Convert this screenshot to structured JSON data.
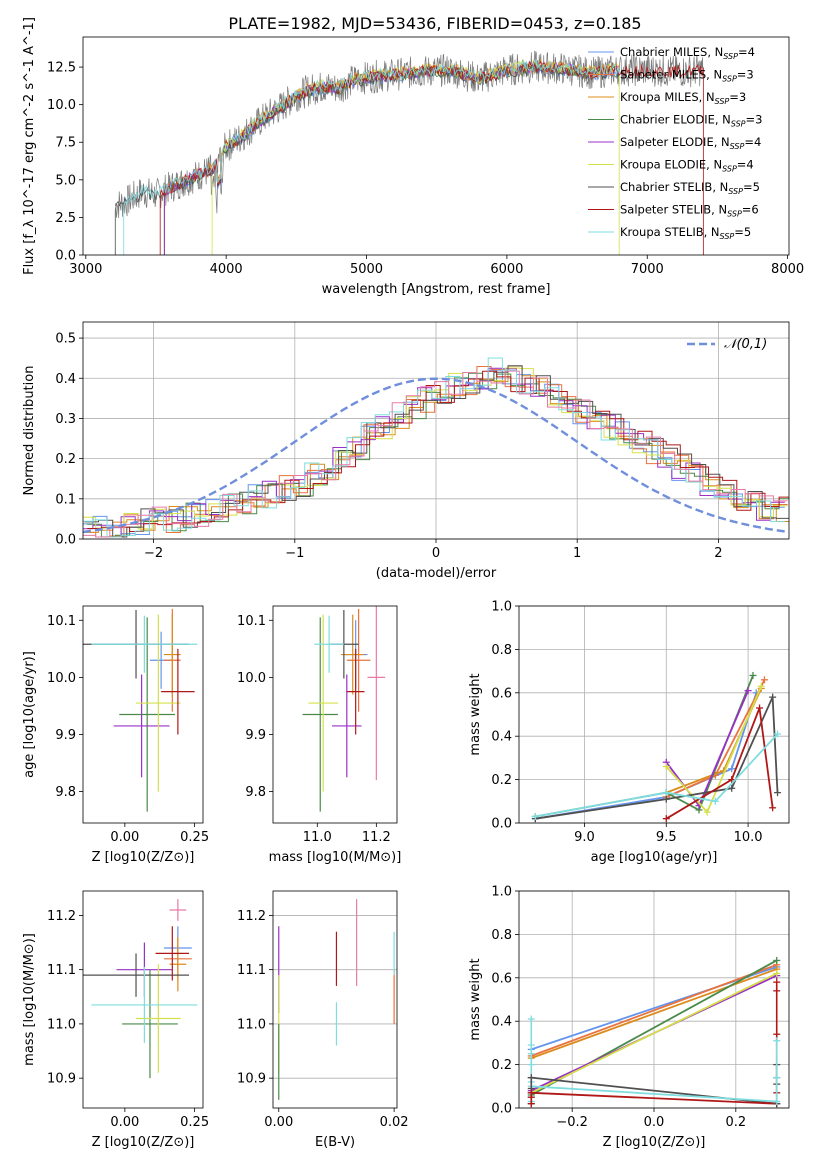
{
  "figure_title": "PLATE=1982, MJD=53436, FIBERID=0453, z=0.185",
  "colors": {
    "Chabrier MILES": "#6495ed",
    "Salpeter MILES": "#e9723d",
    "Kroupa MILES": "#dc8c1e",
    "Chabrier ELODIE": "#4a8a4a",
    "Salpeter ELODIE": "#9b30c8",
    "Kroupa ELODIE": "#d4e04a",
    "Chabrier STELIB": "#505050",
    "Salpeter STELIB": "#b01818",
    "Kroupa STELIB": "#7fdde0",
    "extra_pink": "#e87aa8",
    "normal_curve": "#6f8fdc"
  },
  "chart_data": [
    {
      "id": "spectrum",
      "type": "line",
      "title": "PLATE=1982, MJD=53436, FIBERID=0453, z=0.185",
      "xlabel": "wavelength [Angstrom, rest frame]",
      "ylabel": "Flux [f_λ 10^-17 erg cm^-2 s^-1 A^-1]",
      "xlim": [
        2980,
        8010
      ],
      "ylim": [
        0,
        14.5
      ],
      "xticks": [
        3000,
        4000,
        5000,
        6000,
        7000,
        8000
      ],
      "yticks": [
        0.0,
        2.5,
        5.0,
        7.5,
        10.0,
        12.5
      ],
      "legend_position": "top-right",
      "legend": [
        {
          "name": "Chabrier MILES",
          "nssp": "4"
        },
        {
          "name": "Salpeter MILES",
          "nssp": "3"
        },
        {
          "name": "Kroupa MILES",
          "nssp": "3"
        },
        {
          "name": "Chabrier ELODIE",
          "nssp": "3"
        },
        {
          "name": "Salpeter ELODIE",
          "nssp": "4"
        },
        {
          "name": "Kroupa ELODIE",
          "nssp": "4"
        },
        {
          "name": "Chabrier STELIB",
          "nssp": "5"
        },
        {
          "name": "Salpeter STELIB",
          "nssp": "6"
        },
        {
          "name": "Kroupa STELIB",
          "nssp": "5"
        }
      ],
      "data_continuum": {
        "x": [
          3210,
          3300,
          3400,
          3500,
          3600,
          3700,
          3800,
          3900,
          4000,
          4100,
          4200,
          4300,
          4400,
          4500,
          4600,
          4700,
          4800,
          4900,
          5000,
          5200,
          5400,
          5600,
          5800,
          6000,
          6200,
          6400,
          6600,
          6800,
          7000,
          7200,
          7400
        ],
        "y": [
          3.3,
          3.6,
          4.2,
          4.0,
          4.5,
          4.9,
          5.3,
          5.7,
          7.2,
          7.8,
          8.6,
          9.3,
          9.9,
          10.6,
          11.0,
          11.2,
          11.1,
          11.6,
          11.8,
          12.0,
          12.2,
          12.3,
          11.7,
          12.3,
          12.5,
          12.4,
          12.1,
          12.3,
          12.3,
          12.2,
          12.3
        ]
      },
      "model_starts_angstrom": {
        "Salpeter STELIB": 3530,
        "Kroupa ELODIE": 3900,
        "Chabrier STELIB": 3210,
        "Kroupa STELIB": 3270
      }
    },
    {
      "id": "residual-hist",
      "type": "bar",
      "xlabel": "(data-model)/error",
      "ylabel": "Normed distribution",
      "xlim": [
        -2.5,
        2.5
      ],
      "ylim": [
        0,
        0.54
      ],
      "xticks": [
        -2,
        -1,
        0,
        1,
        2
      ],
      "yticks": [
        0.0,
        0.1,
        0.2,
        0.3,
        0.4,
        0.5
      ],
      "legend_position": "top-right",
      "reference_curve": {
        "name": "𝒩(0,1)",
        "mean": 0,
        "sigma": 1
      },
      "bin_edges_start": -2.5,
      "bin_width": 0.1,
      "density_values": [
        0.02,
        0.025,
        0.03,
        0.035,
        0.04,
        0.045,
        0.05,
        0.055,
        0.06,
        0.07,
        0.08,
        0.09,
        0.1,
        0.11,
        0.125,
        0.14,
        0.16,
        0.18,
        0.2,
        0.22,
        0.26,
        0.28,
        0.31,
        0.33,
        0.35,
        0.37,
        0.38,
        0.39,
        0.4,
        0.42,
        0.4,
        0.39,
        0.38,
        0.36,
        0.34,
        0.32,
        0.3,
        0.28,
        0.26,
        0.24,
        0.22,
        0.2,
        0.18,
        0.16,
        0.14,
        0.12,
        0.105,
        0.09,
        0.08,
        0.07
      ]
    },
    {
      "id": "age-vs-Z",
      "type": "scatter",
      "xlabel": "Z [log10(Z/Z⊙)]",
      "ylabel": "age [log10(age/yr)]",
      "xlim": [
        -0.15,
        0.28
      ],
      "ylim": [
        9.745,
        10.125
      ],
      "xticks": [
        0.0,
        0.25
      ],
      "yticks": [
        9.8,
        9.9,
        10.0,
        10.1
      ],
      "points": [
        {
          "model": "Chabrier MILES",
          "x": 0.13,
          "y": 10.03,
          "xerr": 0.04,
          "yerr": 0.05
        },
        {
          "model": "Salpeter MILES",
          "x": 0.17,
          "y": 10.03,
          "xerr": 0.03,
          "yerr": 0.09
        },
        {
          "model": "Kroupa MILES",
          "x": 0.17,
          "y": 10.04,
          "xerr": 0.03,
          "yerr": 0.07
        },
        {
          "model": "Chabrier ELODIE",
          "x": 0.08,
          "y": 9.935,
          "xerr": 0.1,
          "yerr": 0.17
        },
        {
          "model": "Salpeter ELODIE",
          "x": 0.06,
          "y": 9.915,
          "xerr": 0.1,
          "yerr": 0.09
        },
        {
          "model": "Kroupa ELODIE",
          "x": 0.12,
          "y": 9.955,
          "xerr": 0.08,
          "yerr": 0.155
        },
        {
          "model": "Chabrier STELIB",
          "x": 0.04,
          "y": 10.058,
          "xerr": 0.19,
          "yerr": 0.06
        },
        {
          "model": "Salpeter STELIB",
          "x": 0.19,
          "y": 9.975,
          "xerr": 0.06,
          "yerr": 0.075
        },
        {
          "model": "Kroupa STELIB",
          "x": 0.07,
          "y": 10.058,
          "xerr": 0.19,
          "yerr": 0.05
        }
      ]
    },
    {
      "id": "age-vs-mass",
      "type": "scatter",
      "xlabel": "mass [log10(M/M⊙)]",
      "ylabel": "",
      "xlim": [
        10.85,
        11.27
      ],
      "ylim": [
        9.745,
        10.125
      ],
      "xticks": [
        11.0,
        11.2
      ],
      "yticks": [
        9.8,
        9.9,
        10.0,
        10.1
      ],
      "points": [
        {
          "model": "Chabrier MILES",
          "x": 11.13,
          "y": 10.04,
          "xerr": 0.04,
          "yerr": 0.06
        },
        {
          "model": "Salpeter MILES",
          "x": 11.14,
          "y": 10.03,
          "xerr": 0.04,
          "yerr": 0.09
        },
        {
          "model": "Kroupa MILES",
          "x": 11.12,
          "y": 10.04,
          "xerr": 0.04,
          "yerr": 0.07
        },
        {
          "model": "Chabrier ELODIE",
          "x": 11.01,
          "y": 9.935,
          "xerr": 0.06,
          "yerr": 0.17
        },
        {
          "model": "Salpeter ELODIE",
          "x": 11.1,
          "y": 9.915,
          "xerr": 0.05,
          "yerr": 0.09
        },
        {
          "model": "Kroupa ELODIE",
          "x": 11.02,
          "y": 9.955,
          "xerr": 0.05,
          "yerr": 0.155
        },
        {
          "model": "Chabrier STELIB",
          "x": 11.09,
          "y": 10.058,
          "xerr": 0.05,
          "yerr": 0.06
        },
        {
          "model": "Salpeter STELIB",
          "x": 11.13,
          "y": 9.975,
          "xerr": 0.03,
          "yerr": 0.075
        },
        {
          "model": "Kroupa STELIB",
          "x": 11.04,
          "y": 10.058,
          "xerr": 0.05,
          "yerr": 0.05
        },
        {
          "model": "extra_pink",
          "x": 11.2,
          "y": 10.0,
          "xerr": 0.03,
          "yerr": 0.18
        }
      ]
    },
    {
      "id": "weight-vs-age",
      "type": "line",
      "xlabel": "age [log10(age/yr)]",
      "ylabel": "mass weight",
      "xlim": [
        8.6,
        10.25
      ],
      "ylim": [
        0.0,
        1.0
      ],
      "xticks": [
        9.0,
        9.5,
        10.0
      ],
      "yticks": [
        0.0,
        0.2,
        0.4,
        0.6,
        0.8,
        1.0
      ],
      "series": [
        {
          "model": "Chabrier MILES",
          "x": [
            8.7,
            9.5,
            9.9,
            10.05
          ],
          "y": [
            0.02,
            0.12,
            0.25,
            0.6
          ]
        },
        {
          "model": "Salpeter MILES",
          "x": [
            9.5,
            9.8,
            10.1
          ],
          "y": [
            0.12,
            0.22,
            0.66
          ]
        },
        {
          "model": "Kroupa MILES",
          "x": [
            9.5,
            9.85,
            10.08
          ],
          "y": [
            0.14,
            0.24,
            0.62
          ]
        },
        {
          "model": "Chabrier ELODIE",
          "x": [
            8.7,
            9.5,
            9.7,
            10.03
          ],
          "y": [
            0.03,
            0.14,
            0.06,
            0.68
          ]
        },
        {
          "model": "Salpeter ELODIE",
          "x": [
            9.5,
            9.7,
            10.0
          ],
          "y": [
            0.28,
            0.08,
            0.61
          ]
        },
        {
          "model": "Kroupa ELODIE",
          "x": [
            9.5,
            9.75,
            10.08
          ],
          "y": [
            0.26,
            0.05,
            0.63
          ]
        },
        {
          "model": "Chabrier STELIB",
          "x": [
            8.7,
            9.5,
            9.9,
            10.15,
            10.18
          ],
          "y": [
            0.02,
            0.11,
            0.16,
            0.58,
            0.14
          ]
        },
        {
          "model": "Salpeter STELIB",
          "x": [
            9.5,
            9.9,
            10.07,
            10.15
          ],
          "y": [
            0.02,
            0.2,
            0.53,
            0.07
          ]
        },
        {
          "model": "Kroupa STELIB",
          "x": [
            8.7,
            9.5,
            9.8,
            10.18
          ],
          "y": [
            0.03,
            0.14,
            0.1,
            0.41
          ]
        }
      ]
    },
    {
      "id": "mass-vs-Z",
      "type": "scatter",
      "xlabel": "Z [log10(Z/Z⊙)]",
      "ylabel": "mass [log10(M/M⊙)]",
      "xlim": [
        -0.15,
        0.28
      ],
      "ylim": [
        10.845,
        11.245
      ],
      "xticks": [
        0.0,
        0.25
      ],
      "yticks": [
        10.9,
        11.0,
        11.1,
        11.2
      ],
      "points": [
        {
          "model": "Chabrier MILES",
          "x": 0.19,
          "y": 11.14,
          "xerr": 0.05,
          "yerr": 0.04
        },
        {
          "model": "Salpeter MILES",
          "x": 0.19,
          "y": 11.12,
          "xerr": 0.05,
          "yerr": 0.04
        },
        {
          "model": "Kroupa MILES",
          "x": 0.19,
          "y": 11.11,
          "xerr": 0.03,
          "yerr": 0.05
        },
        {
          "model": "Chabrier ELODIE",
          "x": 0.09,
          "y": 11.0,
          "xerr": 0.1,
          "yerr": 0.1
        },
        {
          "model": "Salpeter ELODIE",
          "x": 0.07,
          "y": 11.1,
          "xerr": 0.1,
          "yerr": 0.05
        },
        {
          "model": "Kroupa ELODIE",
          "x": 0.12,
          "y": 11.01,
          "xerr": 0.08,
          "yerr": 0.1
        },
        {
          "model": "Chabrier STELIB",
          "x": 0.04,
          "y": 11.09,
          "xerr": 0.19,
          "yerr": 0.04
        },
        {
          "model": "Salpeter STELIB",
          "x": 0.17,
          "y": 11.13,
          "xerr": 0.06,
          "yerr": 0.05
        },
        {
          "model": "Kroupa STELIB",
          "x": 0.07,
          "y": 11.035,
          "xerr": 0.19,
          "yerr": 0.07
        },
        {
          "model": "extra_pink",
          "x": 0.19,
          "y": 11.21,
          "xerr": 0.03,
          "yerr": 0.02
        }
      ]
    },
    {
      "id": "mass-vs-ebv",
      "type": "scatter",
      "xlabel": "E(B-V)",
      "ylabel": "",
      "xlim": [
        -0.001,
        0.0205
      ],
      "ylim": [
        10.845,
        11.245
      ],
      "xticks": [
        0.0,
        0.02
      ],
      "yticks": [
        10.9,
        11.0,
        11.1,
        11.2
      ],
      "points": [
        {
          "model": "Salpeter ELODIE",
          "x": 0.0,
          "y": 11.1,
          "xerr": 0,
          "yerr": 0.08
        },
        {
          "model": "Kroupa ELODIE",
          "x": 0.0,
          "y": 11.0,
          "xerr": 0,
          "yerr": 0.09
        },
        {
          "model": "Chabrier ELODIE",
          "x": 0.0,
          "y": 10.93,
          "xerr": 0,
          "yerr": 0.07
        },
        {
          "model": "Salpeter STELIB",
          "x": 0.01,
          "y": 11.12,
          "xerr": 0,
          "yerr": 0.05
        },
        {
          "model": "Kroupa STELIB",
          "x": 0.01,
          "y": 11.0,
          "xerr": 0,
          "yerr": 0.04
        },
        {
          "model": "extra_pink",
          "x": 0.0135,
          "y": 11.15,
          "xerr": 0,
          "yerr": 0.08
        },
        {
          "model": "Salpeter MILES",
          "x": 0.02,
          "y": 11.05,
          "xerr": 0,
          "yerr": 0.05
        },
        {
          "model": "Kroupa STELIB",
          "x": 0.02,
          "y": 11.13,
          "xerr": 0,
          "yerr": 0.04
        }
      ]
    },
    {
      "id": "weight-vs-Z",
      "type": "line",
      "xlabel": "Z [log10(Z/Z⊙)]",
      "ylabel": "mass weight",
      "xlim": [
        -0.33,
        0.33
      ],
      "ylim": [
        0.0,
        1.0
      ],
      "xticks": [
        -0.2,
        0.0,
        0.2
      ],
      "yticks": [
        0.0,
        0.2,
        0.4,
        0.6,
        0.8,
        1.0
      ],
      "series": [
        {
          "model": "Chabrier MILES",
          "x": [
            -0.3,
            0.3
          ],
          "y": [
            0.27,
            0.65
          ]
        },
        {
          "model": "Salpeter MILES",
          "x": [
            -0.3,
            0.3
          ],
          "y": [
            0.24,
            0.66
          ]
        },
        {
          "model": "Kroupa MILES",
          "x": [
            -0.3,
            0.3
          ],
          "y": [
            0.23,
            0.64
          ]
        },
        {
          "model": "Chabrier ELODIE",
          "x": [
            -0.3,
            0.3
          ],
          "y": [
            0.06,
            0.68
          ]
        },
        {
          "model": "Salpeter ELODIE",
          "x": [
            -0.3,
            0.3
          ],
          "y": [
            0.08,
            0.61
          ]
        },
        {
          "model": "Kroupa ELODIE",
          "x": [
            -0.3,
            0.3
          ],
          "y": [
            0.07,
            0.62
          ]
        },
        {
          "model": "Chabrier STELIB",
          "x": [
            -0.3,
            0.3
          ],
          "y": [
            0.14,
            0.02
          ]
        },
        {
          "model": "Salpeter STELIB",
          "x": [
            -0.3,
            0.3
          ],
          "y": [
            0.07,
            0.02
          ]
        },
        {
          "model": "Kroupa STELIB",
          "x": [
            -0.3,
            0.3
          ],
          "y": [
            0.1,
            0.03
          ]
        }
      ],
      "vertical_stacks": [
        {
          "model": "Kroupa STELIB",
          "x": -0.3,
          "y": [
            0.41,
            0.29,
            0.25,
            0.2,
            0.12,
            0.03
          ]
        },
        {
          "model": "Chabrier STELIB",
          "x": -0.3,
          "y": [
            0.14,
            0.09,
            0.05,
            0.02
          ]
        },
        {
          "model": "Salpeter STELIB",
          "x": -0.3,
          "y": [
            0.07,
            0.05,
            0.02
          ]
        },
        {
          "model": "Salpeter STELIB",
          "x": 0.3,
          "y": [
            0.58,
            0.54,
            0.34,
            0.07
          ]
        },
        {
          "model": "Chabrier STELIB",
          "x": 0.3,
          "y": [
            0.2,
            0.14,
            0.11,
            0.02
          ]
        },
        {
          "model": "Kroupa STELIB",
          "x": 0.3,
          "y": [
            0.31,
            0.14,
            0.03
          ]
        }
      ]
    }
  ]
}
